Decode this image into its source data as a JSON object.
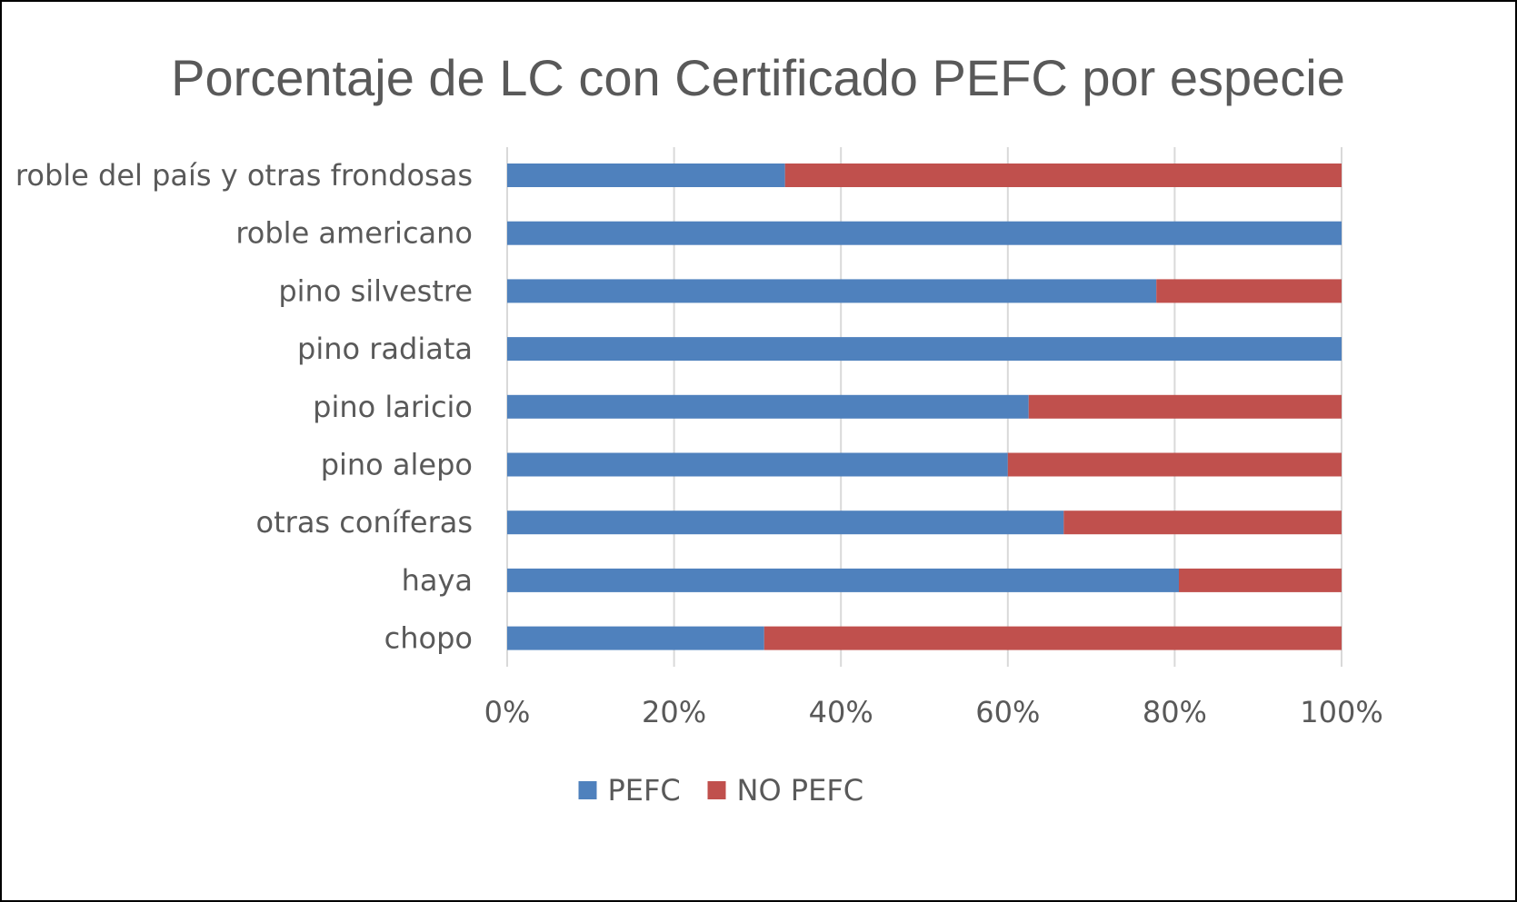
{
  "chart_data": {
    "type": "bar",
    "orientation": "horizontal",
    "stacking": "percent",
    "title": "Porcentaje de LC con Certificado PEFC por especie",
    "categories": [
      "roble del país y otras frondosas",
      "roble americano",
      "pino silvestre",
      "pino radiata",
      "pino laricio",
      "pino alepo",
      "otras coníferas",
      "haya",
      "chopo"
    ],
    "series": [
      {
        "name": "PEFC",
        "color": "#4F81BD",
        "values": [
          33.3,
          100,
          77.8,
          100,
          62.5,
          60,
          66.7,
          80.5,
          30.8
        ]
      },
      {
        "name": "NO PEFC",
        "color": "#C0504D",
        "values": [
          66.7,
          0,
          22.2,
          0,
          37.5,
          40,
          33.3,
          19.5,
          69.2
        ]
      }
    ],
    "x_ticks": [
      "0%",
      "20%",
      "40%",
      "60%",
      "80%",
      "100%"
    ],
    "xlim": [
      0,
      100
    ],
    "grid": "vertical",
    "legend_position": "bottom",
    "gridline_color": "#D9D9D9"
  }
}
